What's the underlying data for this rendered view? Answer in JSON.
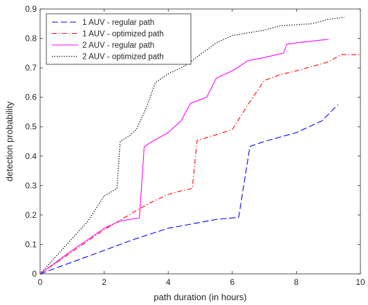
{
  "chart_data": {
    "type": "line",
    "title": "",
    "xlabel": "path duration (in hours)",
    "ylabel": "detection probability",
    "xlim": [
      0,
      10
    ],
    "ylim": [
      0,
      0.9
    ],
    "xticks": [
      0,
      2,
      4,
      6,
      8,
      10
    ],
    "yticks": [
      0,
      0.1,
      0.2,
      0.3,
      0.4,
      0.5,
      0.6,
      0.7,
      0.8,
      0.9
    ],
    "grid": false,
    "legend_position": "top-left",
    "series": [
      {
        "name": "1 AUV - regular path",
        "color": "#0000ff",
        "dash": "dashed",
        "x": [
          0,
          1,
          2,
          3,
          4,
          5,
          5.5,
          6.2,
          6.55,
          7,
          7.5,
          8,
          8.5,
          8.8,
          9.3
        ],
        "y": [
          0,
          0.04,
          0.08,
          0.12,
          0.155,
          0.175,
          0.185,
          0.192,
          0.433,
          0.45,
          0.465,
          0.48,
          0.505,
          0.52,
          0.575
        ]
      },
      {
        "name": "1 AUV - optimized path",
        "color": "#ff0000",
        "dash": "dashdot",
        "x": [
          0,
          1,
          2,
          3,
          3.5,
          4,
          4.4,
          4.75,
          4.9,
          5.5,
          6,
          6.5,
          7,
          7.5,
          8,
          8.5,
          9,
          9.4,
          10
        ],
        "y": [
          0,
          0.075,
          0.15,
          0.215,
          0.245,
          0.27,
          0.282,
          0.29,
          0.453,
          0.473,
          0.49,
          0.577,
          0.657,
          0.677,
          0.69,
          0.705,
          0.72,
          0.745,
          0.745
        ]
      },
      {
        "name": "2 AUV - regular path",
        "color": "#ff00ff",
        "dash": "solid",
        "x": [
          0,
          1,
          2,
          2.5,
          3.1,
          3.25,
          3.5,
          4,
          4.4,
          4.7,
          5.2,
          5.5,
          6,
          6.5,
          7,
          7.6,
          7.7,
          8,
          9
        ],
        "y": [
          0,
          0.08,
          0.155,
          0.18,
          0.19,
          0.432,
          0.45,
          0.48,
          0.52,
          0.58,
          0.6,
          0.665,
          0.69,
          0.725,
          0.735,
          0.75,
          0.78,
          0.785,
          0.797
        ]
      },
      {
        "name": "2 AUV - optimized path",
        "color": "#000000",
        "dash": "dotted",
        "x": [
          0,
          1,
          1.5,
          2,
          2.4,
          2.5,
          2.8,
          3,
          3.3,
          3.6,
          4,
          4.5,
          5,
          5.5,
          6,
          7,
          7.5,
          8.5,
          9,
          9.5
        ],
        "y": [
          0,
          0.12,
          0.18,
          0.265,
          0.29,
          0.45,
          0.47,
          0.49,
          0.56,
          0.65,
          0.68,
          0.705,
          0.745,
          0.785,
          0.81,
          0.828,
          0.843,
          0.85,
          0.865,
          0.872
        ]
      }
    ]
  }
}
